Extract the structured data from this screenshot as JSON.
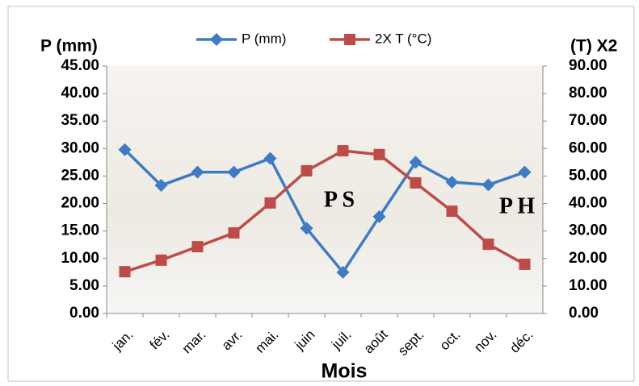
{
  "chart_data": {
    "type": "line",
    "x_label": "Mois",
    "y_label": "P (mm)",
    "y2_label": "(T) X2",
    "categories": [
      "jan.",
      "fév.",
      "mar.",
      "avr.",
      "mai.",
      "juin",
      "juil.",
      "août",
      "sept.",
      "oct.",
      "nov.",
      "déc."
    ],
    "series": [
      {
        "name": "P (mm)",
        "color": "#3d7cc4",
        "marker": "diamond",
        "values": [
          29.8,
          23.3,
          25.7,
          25.7,
          28.2,
          15.5,
          7.5,
          17.6,
          27.5,
          23.9,
          23.4,
          25.7
        ]
      },
      {
        "name": "2X T (°C)",
        "color": "#be4b48",
        "marker": "square",
        "axis": "y2",
        "values": [
          15.2,
          19.4,
          24.3,
          29.3,
          40.2,
          51.9,
          59.2,
          57.8,
          47.5,
          37.2,
          25.2,
          17.9
        ]
      }
    ],
    "ylim": [
      0,
      45
    ],
    "yticks": [
      {
        "value": 0,
        "label": "0.00"
      },
      {
        "value": 5,
        "label": "5.00"
      },
      {
        "value": 10,
        "label": "10.00"
      },
      {
        "value": 15,
        "label": "15.00"
      },
      {
        "value": 20,
        "label": "20.00"
      },
      {
        "value": 25,
        "label": "25.00"
      },
      {
        "value": 30,
        "label": "30.00"
      },
      {
        "value": 35,
        "label": "35.00"
      },
      {
        "value": 40,
        "label": "40.00"
      },
      {
        "value": 45,
        "label": "45.00"
      }
    ],
    "y2lim": [
      0,
      90
    ],
    "y2ticks": [
      {
        "value": 0,
        "label": "0.00"
      },
      {
        "value": 10,
        "label": "10.00"
      },
      {
        "value": 20,
        "label": "20.00"
      },
      {
        "value": 30,
        "label": "30.00"
      },
      {
        "value": 40,
        "label": "40.00"
      },
      {
        "value": 50,
        "label": "50.00"
      },
      {
        "value": 60,
        "label": "60.00"
      },
      {
        "value": 70,
        "label": "70.00"
      },
      {
        "value": 80,
        "label": "80.00"
      },
      {
        "value": 90,
        "label": "90.00"
      }
    ],
    "annotations": [
      "P S",
      "P H"
    ],
    "legend": "top"
  }
}
